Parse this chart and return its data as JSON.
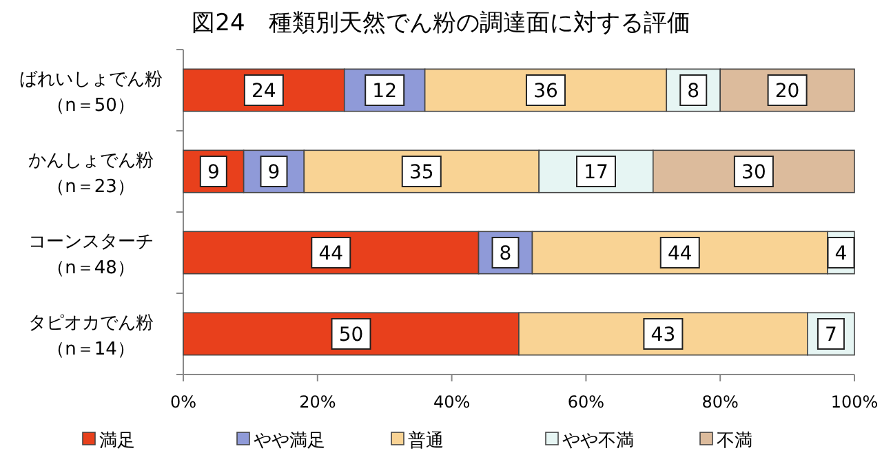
{
  "chart_data": {
    "type": "bar",
    "orientation": "horizontal",
    "stacked": true,
    "title": "図24　種類別天然でん粉の調達面に対する評価",
    "categories": [
      "ばれいしょでん粉（n＝50）",
      "かんしょでん粉（n＝23）",
      "コーンスターチ（n＝48）",
      "タピオカでん粉（n＝14）"
    ],
    "series": [
      {
        "name": "満足",
        "color": "#e8401c",
        "values": [
          24,
          9,
          44,
          50
        ],
        "value_labels": [
          "24",
          "9",
          "44",
          "50"
        ]
      },
      {
        "name": "やや満足",
        "color": "#8f9ad8",
        "values": [
          12,
          9,
          8,
          0
        ],
        "value_labels": [
          "12",
          "9",
          "8",
          null
        ]
      },
      {
        "name": "普通",
        "color": "#f9d394",
        "values": [
          36,
          35,
          44,
          43
        ],
        "value_labels": [
          "36",
          "35",
          "44",
          "43"
        ]
      },
      {
        "name": "やや不満",
        "color": "#e6f5f3",
        "values": [
          8,
          17,
          4,
          7
        ],
        "value_labels": [
          "8",
          "17",
          "4",
          "7"
        ]
      },
      {
        "name": "不満",
        "color": "#dcbb9c",
        "values": [
          20,
          30,
          0,
          0
        ],
        "value_labels": [
          "20",
          "30",
          null,
          null
        ]
      }
    ],
    "xlim": [
      0,
      100
    ],
    "xticks": [
      {
        "value": 0,
        "label": "0%"
      },
      {
        "value": 20,
        "label": "20%"
      },
      {
        "value": 40,
        "label": "40%"
      },
      {
        "value": 60,
        "label": "60%"
      },
      {
        "value": 80,
        "label": "80%"
      },
      {
        "value": 100,
        "label": "100%"
      }
    ],
    "grid": false,
    "legend": "bottom"
  }
}
